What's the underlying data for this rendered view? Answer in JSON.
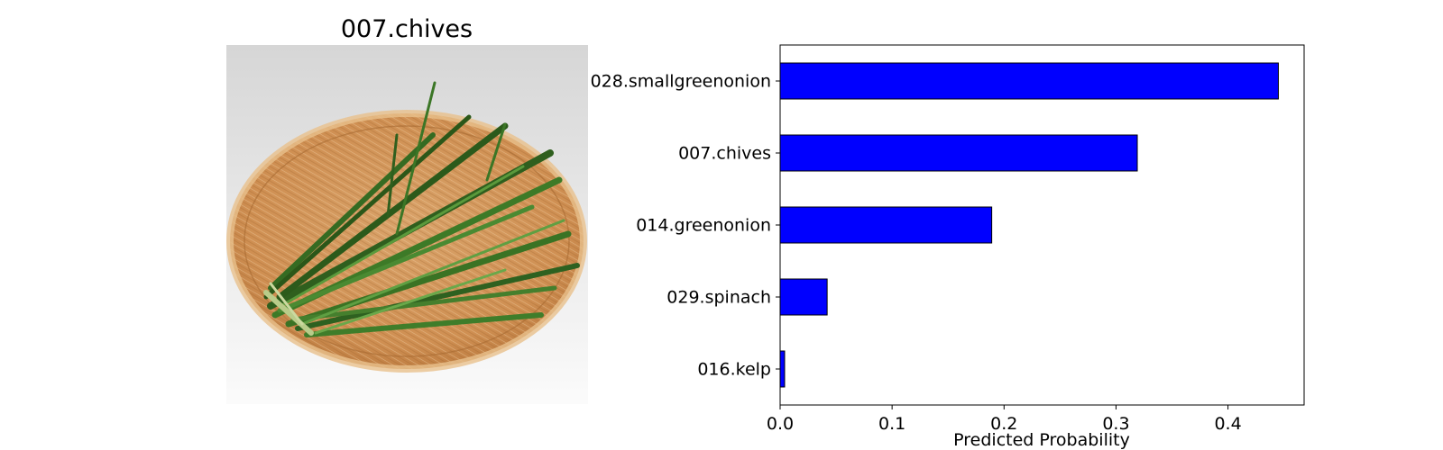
{
  "image_panel": {
    "title": "007.chives",
    "subject": "chives in a round woven bamboo basket"
  },
  "chart_data": {
    "type": "bar",
    "orientation": "horizontal",
    "categories": [
      "028.smallgreenonion",
      "007.chives",
      "014.greenonion",
      "029.spinach",
      "016.kelp"
    ],
    "values": [
      0.445,
      0.319,
      0.189,
      0.042,
      0.004
    ],
    "xlabel": "Predicted Probability",
    "ylabel": "",
    "xlim": [
      0.0,
      0.468
    ],
    "xticks": [
      0.0,
      0.1,
      0.2,
      0.3,
      0.4
    ],
    "xtick_labels": [
      "0.0",
      "0.1",
      "0.2",
      "0.3",
      "0.4"
    ],
    "grid": false,
    "colors": {
      "bar": "#0000ff",
      "edge": "#000000"
    }
  }
}
